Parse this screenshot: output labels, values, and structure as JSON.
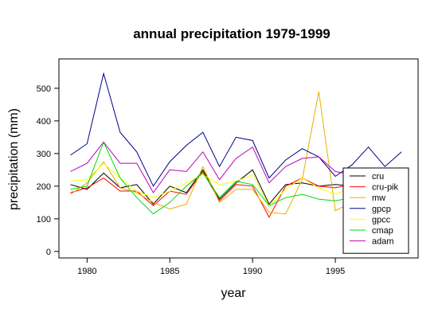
{
  "chart_data": {
    "type": "line",
    "title": "annual precipitation 1979-1999",
    "xlabel": "year",
    "ylabel": "precipitation (mm)",
    "xlim": [
      1978.3,
      2000.0
    ],
    "ylim": [
      -20,
      590
    ],
    "xticks": [
      1980,
      1985,
      1990,
      1995
    ],
    "yticks": [
      0,
      100,
      200,
      300,
      400,
      500
    ],
    "grid": false,
    "legend_position": "bottom-right",
    "x": [
      1979,
      1980,
      1981,
      1982,
      1983,
      1984,
      1985,
      1986,
      1987,
      1988,
      1989,
      1990,
      1991,
      1992,
      1993,
      1994,
      1995,
      1996,
      1997,
      1998,
      1999
    ],
    "series": [
      {
        "name": "cru",
        "color": "#000000",
        "values": [
          205,
          190,
          240,
          195,
          205,
          145,
          200,
          180,
          250,
          160,
          210,
          250,
          145,
          205,
          210,
          200,
          205,
          200,
          null,
          null,
          null
        ]
      },
      {
        "name": "cru-pik",
        "color": "#ff0000",
        "values": [
          180,
          195,
          225,
          185,
          185,
          140,
          185,
          175,
          245,
          155,
          205,
          200,
          105,
          200,
          225,
          200,
          195,
          205,
          null,
          null,
          null
        ]
      },
      {
        "name": "mw",
        "color": "#e6b000",
        "values": [
          175,
          210,
          275,
          195,
          180,
          150,
          130,
          145,
          260,
          150,
          190,
          190,
          120,
          115,
          220,
          490,
          125,
          150,
          null,
          null,
          null
        ]
      },
      {
        "name": "gpcp",
        "color": "#00008b",
        "values": [
          295,
          330,
          545,
          365,
          305,
          200,
          275,
          325,
          365,
          260,
          350,
          340,
          225,
          280,
          315,
          290,
          230,
          265,
          320,
          260,
          305
        ]
      },
      {
        "name": "gpcc",
        "color": "#ffff00",
        "values": [
          215,
          220,
          270,
          225,
          185,
          165,
          185,
          210,
          235,
          205,
          215,
          235,
          140,
          190,
          225,
          195,
          175,
          195,
          null,
          null,
          null
        ]
      },
      {
        "name": "cmap",
        "color": "#00dd00",
        "values": [
          190,
          200,
          335,
          225,
          165,
          115,
          150,
          200,
          240,
          165,
          215,
          205,
          140,
          165,
          175,
          160,
          155,
          165,
          null,
          null,
          null
        ]
      },
      {
        "name": "adam",
        "color": "#bb00bb",
        "values": [
          245,
          270,
          335,
          270,
          270,
          180,
          250,
          245,
          305,
          220,
          285,
          320,
          210,
          260,
          285,
          290,
          245,
          235,
          null,
          null,
          null
        ]
      }
    ]
  }
}
